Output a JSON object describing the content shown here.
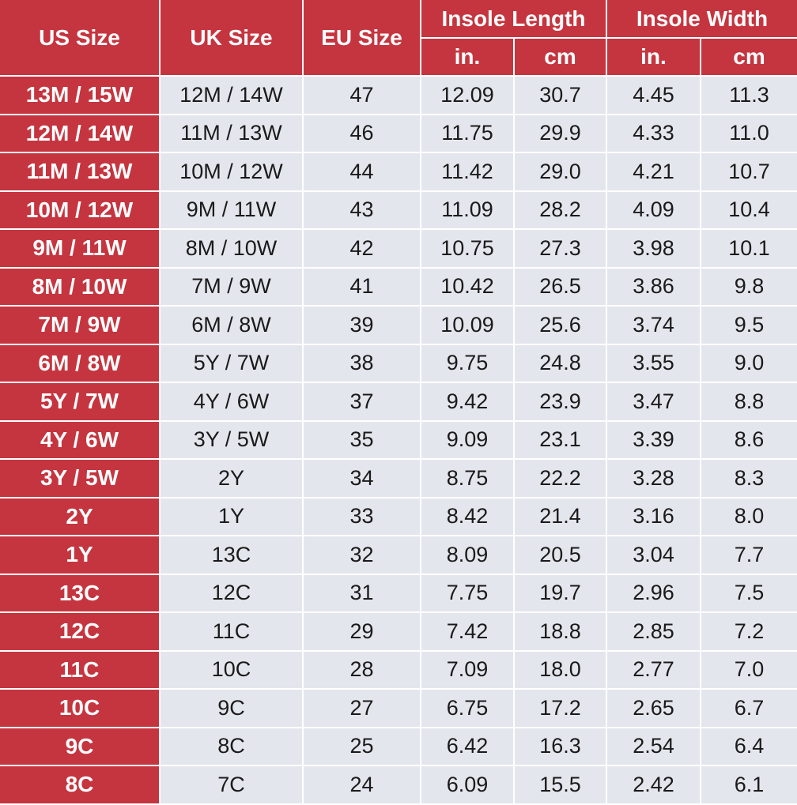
{
  "header": {
    "us_size": "US Size",
    "uk_size": "UK Size",
    "eu_size": "EU Size",
    "insole_length": "Insole Length",
    "insole_width": "Insole Width",
    "length_in": "in.",
    "length_cm": "cm",
    "width_in": "in.",
    "width_cm": "cm"
  },
  "colors": {
    "header_red": "#c5353f",
    "cell_gray": "#e4e6ed"
  },
  "rows": [
    {
      "us": "13M / 15W",
      "uk": "12M / 14W",
      "eu": "47",
      "len_in": "12.09",
      "len_cm": "30.7",
      "wid_in": "4.45",
      "wid_cm": "11.3"
    },
    {
      "us": "12M / 14W",
      "uk": "11M / 13W",
      "eu": "46",
      "len_in": "11.75",
      "len_cm": "29.9",
      "wid_in": "4.33",
      "wid_cm": "11.0"
    },
    {
      "us": "11M / 13W",
      "uk": "10M / 12W",
      "eu": "44",
      "len_in": "11.42",
      "len_cm": "29.0",
      "wid_in": "4.21",
      "wid_cm": "10.7"
    },
    {
      "us": "10M / 12W",
      "uk": "9M / 11W",
      "eu": "43",
      "len_in": "11.09",
      "len_cm": "28.2",
      "wid_in": "4.09",
      "wid_cm": "10.4"
    },
    {
      "us": "9M / 11W",
      "uk": "8M / 10W",
      "eu": "42",
      "len_in": "10.75",
      "len_cm": "27.3",
      "wid_in": "3.98",
      "wid_cm": "10.1"
    },
    {
      "us": "8M / 10W",
      "uk": "7M / 9W",
      "eu": "41",
      "len_in": "10.42",
      "len_cm": "26.5",
      "wid_in": "3.86",
      "wid_cm": "9.8"
    },
    {
      "us": "7M / 9W",
      "uk": "6M / 8W",
      "eu": "39",
      "len_in": "10.09",
      "len_cm": "25.6",
      "wid_in": "3.74",
      "wid_cm": "9.5"
    },
    {
      "us": "6M / 8W",
      "uk": "5Y / 7W",
      "eu": "38",
      "len_in": "9.75",
      "len_cm": "24.8",
      "wid_in": "3.55",
      "wid_cm": "9.0"
    },
    {
      "us": "5Y / 7W",
      "uk": "4Y / 6W",
      "eu": "37",
      "len_in": "9.42",
      "len_cm": "23.9",
      "wid_in": "3.47",
      "wid_cm": "8.8"
    },
    {
      "us": "4Y / 6W",
      "uk": "3Y / 5W",
      "eu": "35",
      "len_in": "9.09",
      "len_cm": "23.1",
      "wid_in": "3.39",
      "wid_cm": "8.6"
    },
    {
      "us": "3Y / 5W",
      "uk": "2Y",
      "eu": "34",
      "len_in": "8.75",
      "len_cm": "22.2",
      "wid_in": "3.28",
      "wid_cm": "8.3"
    },
    {
      "us": "2Y",
      "uk": "1Y",
      "eu": "33",
      "len_in": "8.42",
      "len_cm": "21.4",
      "wid_in": "3.16",
      "wid_cm": "8.0"
    },
    {
      "us": "1Y",
      "uk": "13C",
      "eu": "32",
      "len_in": "8.09",
      "len_cm": "20.5",
      "wid_in": "3.04",
      "wid_cm": "7.7"
    },
    {
      "us": "13C",
      "uk": "12C",
      "eu": "31",
      "len_in": "7.75",
      "len_cm": "19.7",
      "wid_in": "2.96",
      "wid_cm": "7.5"
    },
    {
      "us": "12C",
      "uk": "11C",
      "eu": "29",
      "len_in": "7.42",
      "len_cm": "18.8",
      "wid_in": "2.85",
      "wid_cm": "7.2"
    },
    {
      "us": "11C",
      "uk": "10C",
      "eu": "28",
      "len_in": "7.09",
      "len_cm": "18.0",
      "wid_in": "2.77",
      "wid_cm": "7.0"
    },
    {
      "us": "10C",
      "uk": "9C",
      "eu": "27",
      "len_in": "6.75",
      "len_cm": "17.2",
      "wid_in": "2.65",
      "wid_cm": "6.7"
    },
    {
      "us": "9C",
      "uk": "8C",
      "eu": "25",
      "len_in": "6.42",
      "len_cm": "16.3",
      "wid_in": "2.54",
      "wid_cm": "6.4"
    },
    {
      "us": "8C",
      "uk": "7C",
      "eu": "24",
      "len_in": "6.09",
      "len_cm": "15.5",
      "wid_in": "2.42",
      "wid_cm": "6.1"
    }
  ]
}
